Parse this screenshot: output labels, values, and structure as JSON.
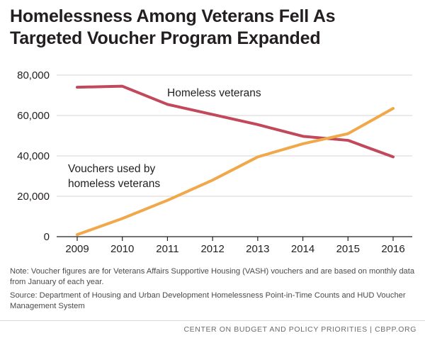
{
  "title_lines": [
    "Homelessness Among Veterans Fell As",
    "Targeted Voucher Program Expanded"
  ],
  "chart_data": {
    "type": "line",
    "x": [
      2009,
      2010,
      2011,
      2012,
      2013,
      2014,
      2015,
      2016
    ],
    "x_tick_labels": [
      "2009",
      "2010",
      "2011",
      "2012",
      "2013",
      "2014",
      "2015",
      "2016"
    ],
    "y_ticks": [
      0,
      20000,
      40000,
      60000,
      80000
    ],
    "y_tick_labels": [
      "0",
      "20,000",
      "40,000",
      "60,000",
      "80,000"
    ],
    "ylim": [
      0,
      80000
    ],
    "grid": true,
    "series": [
      {
        "name": "Homeless veterans",
        "color": "#c2485c",
        "values": [
          74000,
          74500,
          65500,
          60500,
          55500,
          49700,
          47700,
          39500
        ]
      },
      {
        "name_lines": [
          "Vouchers used by",
          "homeless veterans"
        ],
        "color": "#f0a84a",
        "values": [
          1000,
          9000,
          18000,
          28000,
          39500,
          46000,
          51000,
          63500
        ]
      }
    ]
  },
  "notes": {
    "note": "Note: Voucher figures are for Veterans Affairs Supportive Housing (VASH) vouchers and are based on monthly data from January of each year.",
    "source": "Source: Department of Housing and Urban Development Homelessness Point-in-Time Counts and HUD Voucher Management System"
  },
  "footer": "CENTER ON BUDGET AND POLICY PRIORITIES | CBPP.ORG"
}
